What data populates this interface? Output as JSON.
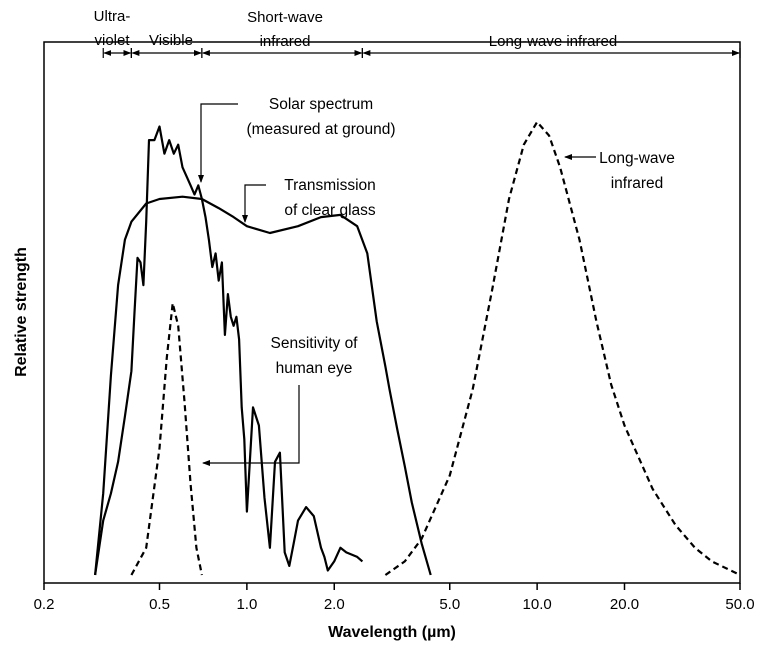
{
  "chart_data": {
    "type": "line",
    "xlabel": "Wavelength (µm)",
    "ylabel": "Relative strength",
    "xscale": "log",
    "xlim": [
      0.2,
      50
    ],
    "ylim": [
      0,
      1
    ],
    "grid": false,
    "legend": "none",
    "x_ticks": [
      {
        "value": 0.2,
        "label": "0.2"
      },
      {
        "value": 0.5,
        "label": "0.5"
      },
      {
        "value": 1.0,
        "label": "1.0"
      },
      {
        "value": 2.0,
        "label": "2.0"
      },
      {
        "value": 5.0,
        "label": "5.0"
      },
      {
        "value": 10.0,
        "label": "10.0"
      },
      {
        "value": 20.0,
        "label": "20.0"
      },
      {
        "value": 50.0,
        "label": "50.0"
      }
    ],
    "bands": [
      {
        "lines": [
          "Ultra-",
          "violet"
        ],
        "from": 0.32,
        "to": 0.4
      },
      {
        "lines": [
          "Visible"
        ],
        "from": 0.4,
        "to": 0.7
      },
      {
        "lines": [
          "Short-wave",
          "infrared"
        ],
        "from": 0.7,
        "to": 2.5
      },
      {
        "lines": [
          "Long-wave infrared"
        ],
        "from": 2.5,
        "to": 50
      }
    ],
    "series": [
      {
        "key": "solar",
        "style": "solid",
        "points": [
          [
            0.3,
            0.0
          ],
          [
            0.32,
            0.12
          ],
          [
            0.34,
            0.18
          ],
          [
            0.36,
            0.25
          ],
          [
            0.38,
            0.35
          ],
          [
            0.4,
            0.45
          ],
          [
            0.41,
            0.58
          ],
          [
            0.42,
            0.7
          ],
          [
            0.43,
            0.69
          ],
          [
            0.44,
            0.64
          ],
          [
            0.45,
            0.78
          ],
          [
            0.46,
            0.96
          ],
          [
            0.48,
            0.96
          ],
          [
            0.5,
            0.99
          ],
          [
            0.52,
            0.93
          ],
          [
            0.54,
            0.96
          ],
          [
            0.56,
            0.93
          ],
          [
            0.58,
            0.95
          ],
          [
            0.6,
            0.9
          ],
          [
            0.62,
            0.88
          ],
          [
            0.64,
            0.86
          ],
          [
            0.66,
            0.84
          ],
          [
            0.68,
            0.86
          ],
          [
            0.7,
            0.83
          ],
          [
            0.72,
            0.79
          ],
          [
            0.74,
            0.74
          ],
          [
            0.76,
            0.68
          ],
          [
            0.78,
            0.71
          ],
          [
            0.8,
            0.65
          ],
          [
            0.82,
            0.69
          ],
          [
            0.84,
            0.53
          ],
          [
            0.86,
            0.62
          ],
          [
            0.88,
            0.57
          ],
          [
            0.9,
            0.55
          ],
          [
            0.92,
            0.57
          ],
          [
            0.94,
            0.52
          ],
          [
            0.96,
            0.37
          ],
          [
            0.98,
            0.3
          ],
          [
            1.0,
            0.14
          ],
          [
            1.05,
            0.37
          ],
          [
            1.1,
            0.33
          ],
          [
            1.15,
            0.17
          ],
          [
            1.2,
            0.06
          ],
          [
            1.25,
            0.25
          ],
          [
            1.3,
            0.27
          ],
          [
            1.35,
            0.05
          ],
          [
            1.4,
            0.02
          ],
          [
            1.45,
            0.07
          ],
          [
            1.5,
            0.12
          ],
          [
            1.6,
            0.15
          ],
          [
            1.7,
            0.13
          ],
          [
            1.8,
            0.06
          ],
          [
            1.85,
            0.04
          ],
          [
            1.9,
            0.01
          ],
          [
            2.0,
            0.03
          ],
          [
            2.1,
            0.06
          ],
          [
            2.2,
            0.05
          ],
          [
            2.4,
            0.04
          ],
          [
            2.5,
            0.03
          ]
        ]
      },
      {
        "key": "glass",
        "style": "solid",
        "points": [
          [
            0.3,
            0.0
          ],
          [
            0.32,
            0.18
          ],
          [
            0.34,
            0.44
          ],
          [
            0.36,
            0.64
          ],
          [
            0.38,
            0.74
          ],
          [
            0.4,
            0.78
          ],
          [
            0.45,
            0.82
          ],
          [
            0.5,
            0.83
          ],
          [
            0.6,
            0.835
          ],
          [
            0.7,
            0.83
          ],
          [
            0.8,
            0.81
          ],
          [
            0.9,
            0.79
          ],
          [
            1.0,
            0.77
          ],
          [
            1.2,
            0.755
          ],
          [
            1.5,
            0.77
          ],
          [
            1.8,
            0.79
          ],
          [
            2.1,
            0.795
          ],
          [
            2.4,
            0.77
          ],
          [
            2.6,
            0.71
          ],
          [
            2.8,
            0.56
          ],
          [
            3.0,
            0.46
          ],
          [
            3.1,
            0.41
          ],
          [
            3.3,
            0.32
          ],
          [
            3.5,
            0.24
          ],
          [
            3.7,
            0.16
          ],
          [
            4.0,
            0.07
          ],
          [
            4.3,
            0.0
          ]
        ]
      },
      {
        "key": "eye",
        "style": "dashed",
        "points": [
          [
            0.4,
            0.0
          ],
          [
            0.45,
            0.06
          ],
          [
            0.5,
            0.28
          ],
          [
            0.53,
            0.48
          ],
          [
            0.555,
            0.6
          ],
          [
            0.58,
            0.55
          ],
          [
            0.61,
            0.38
          ],
          [
            0.64,
            0.2
          ],
          [
            0.67,
            0.06
          ],
          [
            0.7,
            0.0
          ]
        ]
      },
      {
        "key": "longwave",
        "style": "dashed",
        "points": [
          [
            3.0,
            0.0
          ],
          [
            3.5,
            0.03
          ],
          [
            4.0,
            0.08
          ],
          [
            5.0,
            0.22
          ],
          [
            6.0,
            0.41
          ],
          [
            7.0,
            0.63
          ],
          [
            8.0,
            0.83
          ],
          [
            9.0,
            0.95
          ],
          [
            10.0,
            1.0
          ],
          [
            11.0,
            0.97
          ],
          [
            12.0,
            0.9
          ],
          [
            14.0,
            0.74
          ],
          [
            16.0,
            0.56
          ],
          [
            18.0,
            0.42
          ],
          [
            20.0,
            0.33
          ],
          [
            25.0,
            0.19
          ],
          [
            30.0,
            0.11
          ],
          [
            35.0,
            0.06
          ],
          [
            40.0,
            0.03
          ],
          [
            50.0,
            0.0
          ]
        ]
      }
    ],
    "annotations": [
      {
        "key": "solar",
        "lines": [
          "Solar spectrum",
          "(measured at ground)"
        ]
      },
      {
        "key": "glass",
        "lines": [
          "Transmission",
          "of clear glass"
        ]
      },
      {
        "key": "eye",
        "lines": [
          "Sensitivity of",
          "human eye"
        ]
      },
      {
        "key": "longwave",
        "lines": [
          "Long-wave",
          "infrared"
        ]
      }
    ]
  }
}
